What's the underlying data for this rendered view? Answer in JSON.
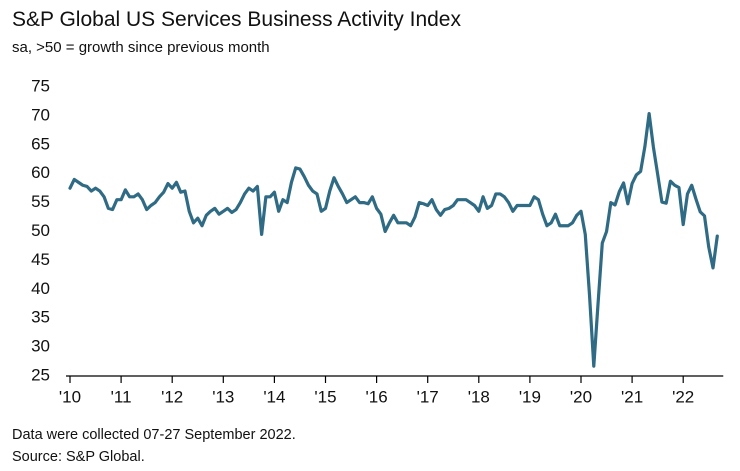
{
  "chart_data": {
    "type": "line",
    "title": "S&P Global US Services Business Activity Index",
    "subtitle": "sa, >50 = growth since previous month",
    "notes": [
      "Data were collected 07-27 September 2022.",
      "Source: S&P Global."
    ],
    "color": "#2f6b84",
    "ylim": [
      25,
      75
    ],
    "yticks": [
      25,
      30,
      35,
      40,
      45,
      50,
      55,
      60,
      65,
      70,
      75
    ],
    "categories": [
      "'10",
      null,
      null,
      null,
      null,
      null,
      null,
      null,
      null,
      null,
      null,
      null,
      "'11",
      null,
      null,
      null,
      null,
      null,
      null,
      null,
      null,
      null,
      null,
      null,
      "'12",
      null,
      null,
      null,
      null,
      null,
      null,
      null,
      null,
      null,
      null,
      null,
      "'13",
      null,
      null,
      null,
      null,
      null,
      null,
      null,
      null,
      null,
      null,
      null,
      "'14",
      null,
      null,
      null,
      null,
      null,
      null,
      null,
      null,
      null,
      null,
      null,
      "'15",
      null,
      null,
      null,
      null,
      null,
      null,
      null,
      null,
      null,
      null,
      null,
      "'16",
      null,
      null,
      null,
      null,
      null,
      null,
      null,
      null,
      null,
      null,
      null,
      "'17",
      null,
      null,
      null,
      null,
      null,
      null,
      null,
      null,
      null,
      null,
      null,
      "'18",
      null,
      null,
      null,
      null,
      null,
      null,
      null,
      null,
      null,
      null,
      null,
      "'19",
      null,
      null,
      null,
      null,
      null,
      null,
      null,
      null,
      null,
      null,
      null,
      "'20",
      null,
      null,
      null,
      null,
      null,
      null,
      null,
      null,
      null,
      null,
      null,
      "'21",
      null,
      null,
      null,
      null,
      null,
      null,
      null,
      null,
      null,
      null,
      null,
      "'22",
      null,
      null,
      null,
      null,
      null,
      null,
      null,
      null
    ],
    "values": [
      57.5,
      59,
      58.5,
      58,
      57.8,
      57,
      57.5,
      57,
      56,
      54,
      53.8,
      55.5,
      55.5,
      57.2,
      56,
      56,
      56.5,
      55.5,
      53.8,
      54.5,
      55,
      56,
      56.8,
      58.3,
      57.5,
      58.5,
      56.8,
      57,
      53.5,
      51.5,
      52.3,
      51,
      52.8,
      53.5,
      54,
      53,
      53.5,
      54,
      53.3,
      53.8,
      55,
      56.5,
      57.5,
      57,
      57.8,
      49.5,
      56,
      56,
      56.8,
      53.5,
      55.5,
      55,
      58.5,
      61,
      60.8,
      59.5,
      58,
      57,
      56.5,
      53.5,
      54,
      57,
      59.3,
      57.8,
      56.5,
      55,
      55.5,
      56,
      55,
      55,
      54.8,
      56,
      54,
      53,
      50,
      51.5,
      52.8,
      51.5,
      51.5,
      51.5,
      51,
      52.5,
      55,
      54.8,
      54.5,
      55.5,
      53.8,
      52.8,
      53.8,
      54,
      54.5,
      55.5,
      55.5,
      55.5,
      55,
      54.5,
      53.5,
      56,
      54,
      54.5,
      56.5,
      56.5,
      56,
      55,
      53.5,
      54.5,
      54.5,
      54.5,
      54.5,
      56,
      55.5,
      53,
      51,
      51.5,
      53,
      51,
      51,
      51,
      51.5,
      52.8,
      53.5,
      49.5,
      39,
      26.7,
      37.5,
      48,
      50,
      55,
      54.6,
      56.9,
      58.4,
      54.8,
      58.3,
      59.8,
      60.4,
      64.7,
      70.4,
      64.6,
      59.9,
      55.1,
      54.9,
      58.7,
      58,
      57.6,
      51.2,
      56.5,
      58,
      55.6,
      53.4,
      52.7,
      47.3,
      43.7,
      49.2
    ]
  }
}
